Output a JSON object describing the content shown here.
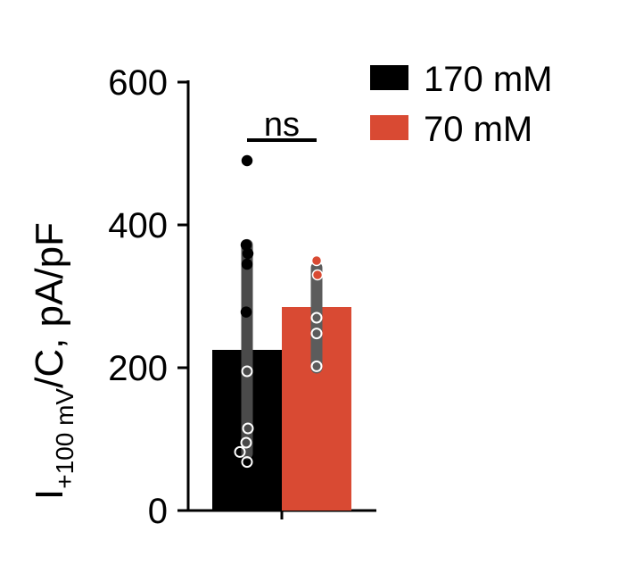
{
  "chart_data": {
    "type": "bar",
    "categories": [
      "170 mM",
      "70 mM"
    ],
    "values": [
      225,
      285
    ],
    "ylabel": {
      "main": "I",
      "subscript": "+100 mV",
      "rest": "/C, pA/pF"
    },
    "ylim": [
      0,
      600
    ],
    "yticks": [
      "0",
      "200",
      "400",
      "600"
    ],
    "legend": {
      "position": "top-right",
      "entries": [
        {
          "label": "170 mM",
          "color": "#000000"
        },
        {
          "label": "70 mM",
          "color": "#d94a33"
        }
      ]
    },
    "colors": [
      "#000000",
      "#d94a33"
    ],
    "error_bars": [
      {
        "low": 80,
        "high": 372
      },
      {
        "low": 200,
        "high": 340
      }
    ],
    "points": [
      {
        "series": 0,
        "values": [
          490,
          372,
          360,
          345,
          278,
          195,
          115,
          95,
          82,
          68
        ],
        "hollow": [
          false,
          false,
          false,
          false,
          false,
          true,
          true,
          true,
          true,
          true
        ]
      },
      {
        "series": 1,
        "values": [
          350,
          330,
          270,
          248,
          202
        ],
        "hollow": [
          false,
          false,
          true,
          true,
          true
        ]
      }
    ],
    "annotation": "ns"
  }
}
